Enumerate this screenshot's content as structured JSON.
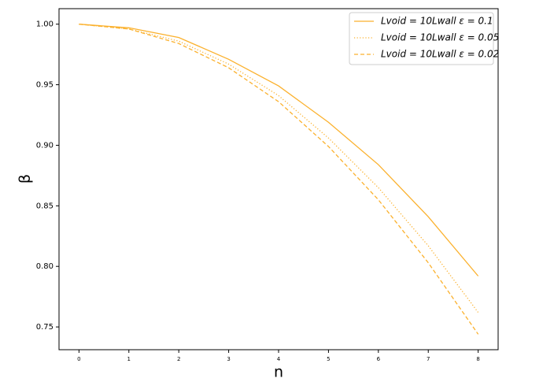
{
  "chart_data": {
    "type": "line",
    "x_label": "n",
    "y_label": "β",
    "x": [
      0,
      1,
      2,
      3,
      4,
      5,
      6,
      7,
      8
    ],
    "xlim": [
      -0.4,
      8.4
    ],
    "xticks": [
      0,
      1,
      2,
      3,
      4,
      5,
      6,
      7,
      8
    ],
    "ylim": [
      0.7312,
      1.0128
    ],
    "yticks": [
      {
        "value": 0.75,
        "label": "0.75"
      },
      {
        "value": 0.8,
        "label": "0.80"
      },
      0.85,
      {
        "value": 0.9,
        "label": "0.90"
      },
      0.95,
      {
        "value": 1.0,
        "label": "1.00"
      }
    ],
    "legend": "upper right",
    "series": [
      {
        "name": "Lvoid = 10Lwall   ε = 0.1",
        "color": "#fbb12d",
        "linestyle": "solid",
        "values": [
          1.0,
          0.997,
          0.989,
          0.971,
          0.949,
          0.919,
          0.884,
          0.841,
          0.792
        ]
      },
      {
        "name": "Lvoid = 10Lwall   ε = 0.05",
        "color": "#fbb12d",
        "linestyle": "dotted",
        "values": [
          1.0,
          0.996,
          0.986,
          0.967,
          0.941,
          0.906,
          0.865,
          0.817,
          0.762
        ]
      },
      {
        "name": "Lvoid = 10Lwall   ε = 0.02",
        "color": "#fbb12d",
        "linestyle": "dashed",
        "values": [
          1.0,
          0.996,
          0.984,
          0.964,
          0.936,
          0.899,
          0.855,
          0.803,
          0.744
        ]
      }
    ]
  }
}
